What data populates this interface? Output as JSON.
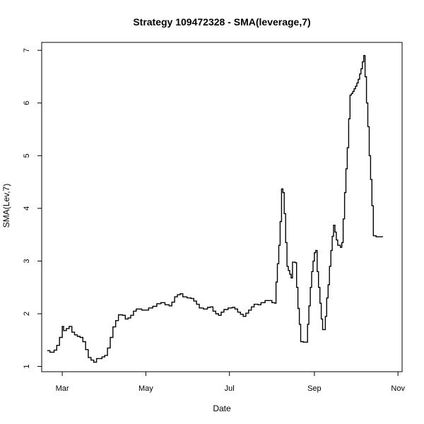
{
  "chart_data": {
    "type": "line",
    "title": "Strategy 109472328 - SMA(leverage,7)",
    "xlabel": "Date",
    "ylabel": "SMA(Lev,7)",
    "x_ticks": [
      "Mar",
      "May",
      "Jul",
      "Sep",
      "Nov"
    ],
    "x_tick_dates": [
      "2016-03-01",
      "2016-05-01",
      "2016-07-01",
      "2016-09-01",
      "2016-11-01"
    ],
    "y_ticks": [
      "1",
      "2",
      "3",
      "4",
      "5",
      "6",
      "7"
    ],
    "xlim": [
      "2016-02-15",
      "2016-11-04"
    ],
    "ylim": [
      0.9,
      7.15
    ],
    "grid": false,
    "legend": "none",
    "line_color": "#000000",
    "step": true,
    "series": [
      {
        "points": [
          [
            "2016-02-19",
            1.3
          ],
          [
            "2016-02-21",
            1.27
          ],
          [
            "2016-02-24",
            1.31
          ],
          [
            "2016-02-26",
            1.4
          ],
          [
            "2016-02-28",
            1.55
          ],
          [
            "2016-03-01",
            1.76
          ],
          [
            "2016-03-02",
            1.68
          ],
          [
            "2016-03-04",
            1.72
          ],
          [
            "2016-03-06",
            1.76
          ],
          [
            "2016-03-08",
            1.65
          ],
          [
            "2016-03-10",
            1.6
          ],
          [
            "2016-03-12",
            1.57
          ],
          [
            "2016-03-14",
            1.55
          ],
          [
            "2016-03-16",
            1.47
          ],
          [
            "2016-03-18",
            1.32
          ],
          [
            "2016-03-20",
            1.17
          ],
          [
            "2016-03-22",
            1.12
          ],
          [
            "2016-03-24",
            1.08
          ],
          [
            "2016-03-26",
            1.15
          ],
          [
            "2016-03-28",
            1.15
          ],
          [
            "2016-03-30",
            1.18
          ],
          [
            "2016-04-01",
            1.21
          ],
          [
            "2016-04-03",
            1.35
          ],
          [
            "2016-04-05",
            1.55
          ],
          [
            "2016-04-07",
            1.75
          ],
          [
            "2016-04-09",
            1.87
          ],
          [
            "2016-04-11",
            1.98
          ],
          [
            "2016-04-14",
            1.97
          ],
          [
            "2016-04-16",
            1.9
          ],
          [
            "2016-04-18",
            1.92
          ],
          [
            "2016-04-20",
            1.97
          ],
          [
            "2016-04-22",
            2.05
          ],
          [
            "2016-04-24",
            2.09
          ],
          [
            "2016-04-26",
            2.09
          ],
          [
            "2016-04-28",
            2.07
          ],
          [
            "2016-05-01",
            2.07
          ],
          [
            "2016-05-03",
            2.11
          ],
          [
            "2016-05-06",
            2.14
          ],
          [
            "2016-05-09",
            2.19
          ],
          [
            "2016-05-12",
            2.21
          ],
          [
            "2016-05-15",
            2.17
          ],
          [
            "2016-05-18",
            2.15
          ],
          [
            "2016-05-20",
            2.22
          ],
          [
            "2016-05-22",
            2.32
          ],
          [
            "2016-05-24",
            2.36
          ],
          [
            "2016-05-26",
            2.38
          ],
          [
            "2016-05-28",
            2.32
          ],
          [
            "2016-05-31",
            2.3
          ],
          [
            "2016-06-03",
            2.29
          ],
          [
            "2016-06-05",
            2.24
          ],
          [
            "2016-06-07",
            2.18
          ],
          [
            "2016-06-09",
            2.11
          ],
          [
            "2016-06-12",
            2.09
          ],
          [
            "2016-06-15",
            2.12
          ],
          [
            "2016-06-17",
            2.13
          ],
          [
            "2016-06-19",
            2.05
          ],
          [
            "2016-06-21",
            2.0
          ],
          [
            "2016-06-23",
            1.97
          ],
          [
            "2016-06-25",
            2.03
          ],
          [
            "2016-06-27",
            2.08
          ],
          [
            "2016-06-30",
            2.11
          ],
          [
            "2016-07-03",
            2.12
          ],
          [
            "2016-07-05",
            2.09
          ],
          [
            "2016-07-07",
            2.03
          ],
          [
            "2016-07-09",
            1.99
          ],
          [
            "2016-07-11",
            1.95
          ],
          [
            "2016-07-13",
            2.01
          ],
          [
            "2016-07-15",
            2.07
          ],
          [
            "2016-07-17",
            2.13
          ],
          [
            "2016-07-19",
            2.18
          ],
          [
            "2016-07-22",
            2.17
          ],
          [
            "2016-07-24",
            2.21
          ],
          [
            "2016-07-27",
            2.25
          ],
          [
            "2016-07-30",
            2.25
          ],
          [
            "2016-08-01",
            2.21
          ],
          [
            "2016-08-03",
            2.2
          ],
          [
            "2016-08-04",
            2.6
          ],
          [
            "2016-08-05",
            2.95
          ],
          [
            "2016-08-06",
            3.3
          ],
          [
            "2016-08-07",
            3.75
          ],
          [
            "2016-08-08",
            4.37
          ],
          [
            "2016-08-09",
            4.3
          ],
          [
            "2016-08-10",
            3.9
          ],
          [
            "2016-08-11",
            3.35
          ],
          [
            "2016-08-12",
            2.9
          ],
          [
            "2016-08-13",
            2.82
          ],
          [
            "2016-08-14",
            2.75
          ],
          [
            "2016-08-15",
            2.68
          ],
          [
            "2016-08-16",
            2.98
          ],
          [
            "2016-08-18",
            2.97
          ],
          [
            "2016-08-19",
            2.5
          ],
          [
            "2016-08-20",
            2.1
          ],
          [
            "2016-08-21",
            1.8
          ],
          [
            "2016-08-22",
            1.47
          ],
          [
            "2016-08-24",
            1.46
          ],
          [
            "2016-08-26",
            1.46
          ],
          [
            "2016-08-27",
            1.8
          ],
          [
            "2016-08-28",
            2.15
          ],
          [
            "2016-08-29",
            2.5
          ],
          [
            "2016-08-30",
            2.8
          ],
          [
            "2016-08-31",
            3.0
          ],
          [
            "2016-09-01",
            3.16
          ],
          [
            "2016-09-02",
            3.2
          ],
          [
            "2016-09-03",
            2.8
          ],
          [
            "2016-09-04",
            2.5
          ],
          [
            "2016-09-05",
            2.2
          ],
          [
            "2016-09-06",
            1.9
          ],
          [
            "2016-09-07",
            1.7
          ],
          [
            "2016-09-09",
            1.95
          ],
          [
            "2016-09-10",
            2.3
          ],
          [
            "2016-09-11",
            2.55
          ],
          [
            "2016-09-12",
            2.9
          ],
          [
            "2016-09-13",
            3.2
          ],
          [
            "2016-09-14",
            3.47
          ],
          [
            "2016-09-15",
            3.68
          ],
          [
            "2016-09-16",
            3.55
          ],
          [
            "2016-09-17",
            3.4
          ],
          [
            "2016-09-18",
            3.3
          ],
          [
            "2016-09-20",
            3.26
          ],
          [
            "2016-09-21",
            3.35
          ],
          [
            "2016-09-22",
            3.8
          ],
          [
            "2016-09-23",
            4.3
          ],
          [
            "2016-09-24",
            4.75
          ],
          [
            "2016-09-25",
            5.15
          ],
          [
            "2016-09-26",
            5.7
          ],
          [
            "2016-09-27",
            6.15
          ],
          [
            "2016-09-28",
            6.18
          ],
          [
            "2016-09-29",
            6.22
          ],
          [
            "2016-09-30",
            6.27
          ],
          [
            "2016-10-01",
            6.32
          ],
          [
            "2016-10-02",
            6.38
          ],
          [
            "2016-10-03",
            6.45
          ],
          [
            "2016-10-04",
            6.55
          ],
          [
            "2016-10-05",
            6.65
          ],
          [
            "2016-10-06",
            6.78
          ],
          [
            "2016-10-07",
            6.9
          ],
          [
            "2016-10-08",
            6.5
          ],
          [
            "2016-10-09",
            6.0
          ],
          [
            "2016-10-10",
            5.55
          ],
          [
            "2016-10-11",
            5.0
          ],
          [
            "2016-10-12",
            4.55
          ],
          [
            "2016-10-13",
            4.05
          ],
          [
            "2016-10-14",
            3.48
          ],
          [
            "2016-10-16",
            3.46
          ],
          [
            "2016-10-21",
            3.46
          ]
        ]
      }
    ]
  }
}
